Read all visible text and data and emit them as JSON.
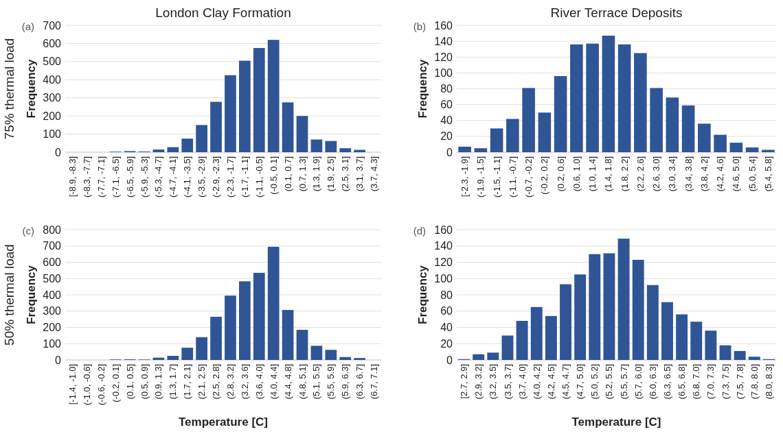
{
  "chart_data": [
    {
      "type": "bar",
      "title": "London Clay Formation",
      "ylabel": "Frequency",
      "annotations": [
        "(a)",
        "75% thermal load"
      ],
      "categories": [
        "[-8.9, -8.3]",
        "(-8.3, -7.7]",
        "(-7.7, -7.1]",
        "(-7.1, -6.5]",
        "(-6.5, -5.9]",
        "(-5.9, -5.3]",
        "(-5.3, -4.7]",
        "(-4.7, -4.1]",
        "(-4.1, -3.5]",
        "(-3.5, -2.9]",
        "(-2.9, -2.3]",
        "(-2.3, -1.7]",
        "(-1.7, -1.1]",
        "(-1.1, -0.5]",
        "(-0.5, 0.1]",
        "(0.1, 0.7]",
        "(0.7, 1.3]",
        "(1.3, 1.9]",
        "(1.9, 2.5]",
        "(2.5, 3.1]",
        "(3.1, 3.7]",
        "(3.7, 4.3]"
      ],
      "series": [
        {
          "color": "#2f5597",
          "values": [
            0,
            0,
            0,
            3,
            6,
            4,
            15,
            28,
            75,
            150,
            278,
            425,
            505,
            575,
            620,
            275,
            200,
            70,
            62,
            22,
            13,
            0
          ]
        }
      ],
      "ylim": [
        0,
        700
      ],
      "yticks": [
        0,
        100,
        200,
        300,
        400,
        500,
        600,
        700
      ],
      "grid": "y"
    },
    {
      "type": "bar",
      "title": "River Terrace Deposits",
      "ylabel": "Frequency",
      "annotations": [
        "(b)"
      ],
      "categories": [
        "[-2.3, -1.9]",
        "(-1.9, -1.5]",
        "(-1.5, -1.1]",
        "(-1.1, -0.7]",
        "(-0.7, -0.2]",
        "(-0.2, 0.2]",
        "(0.2, 0.6]",
        "(0.6, 1.0]",
        "(1.0, 1.4]",
        "(1.4, 1.8]",
        "(1.8, 2.2]",
        "(2.2, 2.6]",
        "(2.6, 3.0]",
        "(3.0, 3.4]",
        "(3.4, 3.8]",
        "(3.8, 4.2]",
        "(4.2, 4.6]",
        "(4.6, 5.0]",
        "(5.0, 5.4]",
        "(5.4, 5.8]"
      ],
      "series": [
        {
          "color": "#2f5597",
          "values": [
            7,
            5,
            30,
            42,
            81,
            50,
            96,
            136,
            137,
            147,
            136,
            125,
            81,
            69,
            59,
            36,
            22,
            12,
            6,
            3
          ]
        }
      ],
      "ylim": [
        0,
        160
      ],
      "yticks": [
        0,
        20,
        40,
        60,
        80,
        100,
        120,
        140,
        160
      ],
      "grid": "y"
    },
    {
      "type": "bar",
      "ylabel": "Frequency",
      "xlabel": "Temperature [C]",
      "annotations": [
        "(c)",
        "50% thermal load"
      ],
      "categories": [
        "[-1.4, -1.0]",
        "(-1.0, -0.6]",
        "(-0.6, -0.2]",
        "(-0.2, 0.1]",
        "(0.1, 0.5]",
        "(0.5, 0.9]",
        "(0.9, 1.3]",
        "(1.3, 1.7]",
        "(1.7, 2.1]",
        "(2.1, 2.5]",
        "(2.5, 2.8]",
        "(2.8, 3.2]",
        "(3.2, 3.6]",
        "(3.6, 4.0]",
        "(4.0, 4.4]",
        "(4.4, 4.8]",
        "(4.8, 5.1]",
        "(5.1, 5.5]",
        "(5.5, 5.9]",
        "(5.9, 6.3]",
        "(6.3, 6.7]",
        "(6.7, 7.1]"
      ],
      "series": [
        {
          "color": "#2f5597",
          "values": [
            0,
            0,
            0,
            3,
            4,
            3,
            14,
            25,
            75,
            140,
            265,
            395,
            483,
            535,
            695,
            307,
            185,
            87,
            62,
            18,
            12,
            0
          ]
        }
      ],
      "ylim": [
        0,
        800
      ],
      "yticks": [
        0,
        100,
        200,
        300,
        400,
        500,
        600,
        700,
        800
      ],
      "grid": "y"
    },
    {
      "type": "bar",
      "ylabel": "Frequency",
      "xlabel": "Temperature [C]",
      "annotations": [
        "(d)"
      ],
      "categories": [
        "[2.7, 2.9]",
        "(2.9, 3.2]",
        "(3.2, 3.5]",
        "(3.5, 3.7]",
        "(3.7, 4.0]",
        "(4.0, 4.2]",
        "(4.2, 4.5]",
        "(4.5, 4.7]",
        "(4.7, 5.0]",
        "(5.0, 5.2]",
        "(5.2, 5.5]",
        "(5.5, 5.7]",
        "(5.7, 6.0]",
        "(6.0, 6.3]",
        "(6.3, 6.5]",
        "(6.5, 6.8]",
        "(6.8, 7.0]",
        "(7.0, 7.3]",
        "(7.3, 7.5]",
        "(7.5, 7.8]",
        "(7.8, 8.0]",
        "(8.0, 8.3]"
      ],
      "series": [
        {
          "color": "#2f5597",
          "values": [
            1,
            7,
            9,
            30,
            48,
            65,
            54,
            93,
            105,
            130,
            131,
            149,
            123,
            92,
            71,
            56,
            47,
            36,
            18,
            11,
            4,
            1
          ]
        }
      ],
      "ylim": [
        0,
        160
      ],
      "yticks": [
        0,
        20,
        40,
        60,
        80,
        100,
        120,
        140,
        160
      ],
      "grid": "y"
    }
  ]
}
